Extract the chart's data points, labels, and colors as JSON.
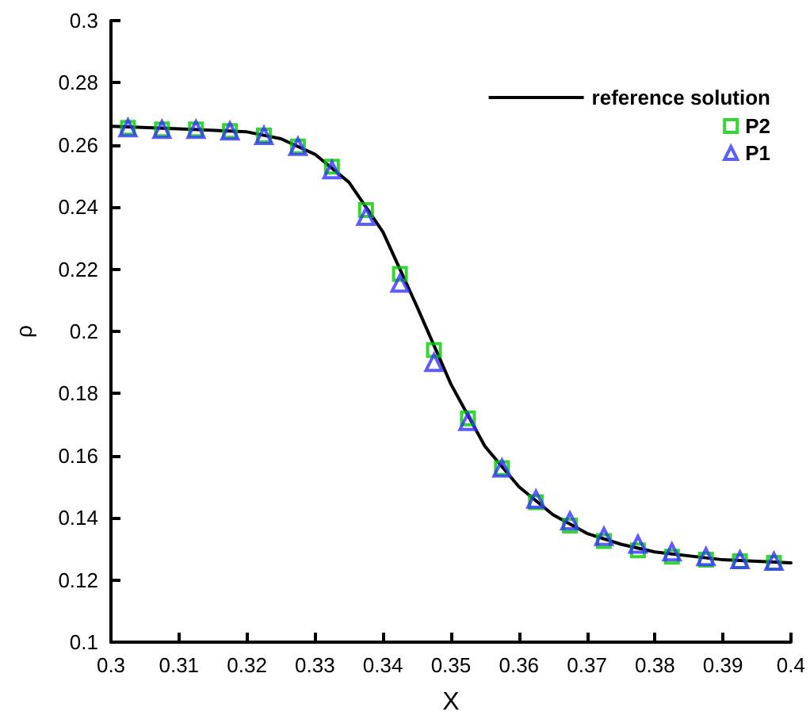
{
  "chart_data": {
    "type": "line",
    "xlabel": "X",
    "ylabel": "ρ",
    "xlim": [
      0.3,
      0.4
    ],
    "xticks": [
      0.3,
      0.31,
      0.32,
      0.33,
      0.34,
      0.35,
      0.36,
      0.37,
      0.38,
      0.39,
      0.4
    ],
    "ylim": [
      0.1,
      0.3
    ],
    "yticks": [
      0.1,
      0.12,
      0.14,
      0.16,
      0.18,
      0.2,
      0.22,
      0.24,
      0.26,
      0.28,
      0.3
    ],
    "grid": false,
    "legend": "top right",
    "series": [
      {
        "name": "reference solution",
        "color": "#000000",
        "marker": "none",
        "line_style": "solid",
        "x": [
          0.3,
          0.31,
          0.32,
          0.325,
          0.33,
          0.335,
          0.34,
          0.345,
          0.35,
          0.355,
          0.36,
          0.365,
          0.37,
          0.375,
          0.38,
          0.39,
          0.4
        ],
        "values": [
          0.266,
          0.2652,
          0.2642,
          0.262,
          0.257,
          0.248,
          0.232,
          0.208,
          0.183,
          0.163,
          0.15,
          0.141,
          0.135,
          0.1315,
          0.129,
          0.1265,
          0.1255
        ]
      },
      {
        "name": "P2",
        "type": "scatter",
        "color": "#00cc00",
        "marker": "square",
        "x": [
          0.3025,
          0.3075,
          0.3125,
          0.3175,
          0.3225,
          0.3275,
          0.3325,
          0.3375,
          0.3425,
          0.3475,
          0.3525,
          0.3575,
          0.3625,
          0.3675,
          0.3725,
          0.3775,
          0.3825,
          0.3875,
          0.3925,
          0.3975
        ],
        "values": [
          0.2655,
          0.265,
          0.265,
          0.2645,
          0.263,
          0.2595,
          0.253,
          0.239,
          0.2185,
          0.194,
          0.172,
          0.156,
          0.145,
          0.1375,
          0.1325,
          0.1295,
          0.1275,
          0.1265,
          0.126,
          0.1255
        ]
      },
      {
        "name": "P1",
        "type": "scatter",
        "color": "#3333ff",
        "marker": "triangle",
        "x": [
          0.3025,
          0.3075,
          0.3125,
          0.3175,
          0.3225,
          0.3275,
          0.3325,
          0.3375,
          0.3425,
          0.3475,
          0.3525,
          0.3575,
          0.3625,
          0.3675,
          0.3725,
          0.3775,
          0.3825,
          0.3875,
          0.3925,
          0.3975
        ],
        "values": [
          0.2655,
          0.265,
          0.265,
          0.2645,
          0.263,
          0.2595,
          0.252,
          0.237,
          0.2155,
          0.19,
          0.171,
          0.156,
          0.146,
          0.139,
          0.134,
          0.1315,
          0.129,
          0.1275,
          0.1265,
          0.126
        ]
      }
    ]
  }
}
